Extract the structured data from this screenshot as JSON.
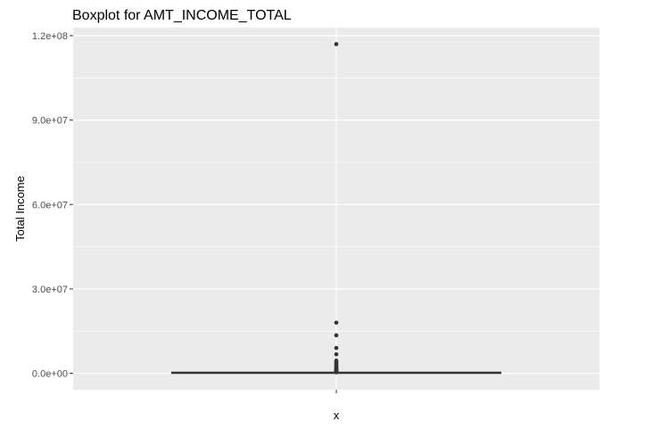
{
  "chart_data": {
    "type": "boxplot",
    "title": "Boxplot for AMT_INCOME_TOTAL",
    "xlabel": "x",
    "ylabel": "Total Income",
    "x_tick_labels": [
      ""
    ],
    "y_ticks": [
      {
        "value": 0,
        "label": "0.0e+00"
      },
      {
        "value": 30000000,
        "label": "3.0e+07"
      },
      {
        "value": 60000000,
        "label": "6.0e+07"
      },
      {
        "value": 90000000,
        "label": "9.0e+07"
      },
      {
        "value": 120000000,
        "label": "1.2e+08"
      }
    ],
    "ylim": [
      -5850000,
      122850000
    ],
    "grid": true,
    "box": {
      "min": 25650,
      "q1": 112500,
      "median": 147150,
      "q3": 202500,
      "max": 337500
    },
    "outliers": [
      117000000,
      18000090,
      13500000,
      9000000,
      6750000,
      4500000,
      4050000,
      3600000,
      3150000,
      2700000,
      2250000,
      1935000,
      1800000,
      1575000,
      1350000,
      1125000,
      900000,
      765000,
      630000,
      540000,
      472500,
      405000,
      360000
    ],
    "colors": {
      "panel_bg": "#EBEBEB",
      "grid": "#FFFFFF",
      "box_line": "#333333",
      "box_fill": "#FFFFFF",
      "points": "#333333",
      "text": "#000000",
      "tick_text": "#4D4D4D"
    }
  }
}
